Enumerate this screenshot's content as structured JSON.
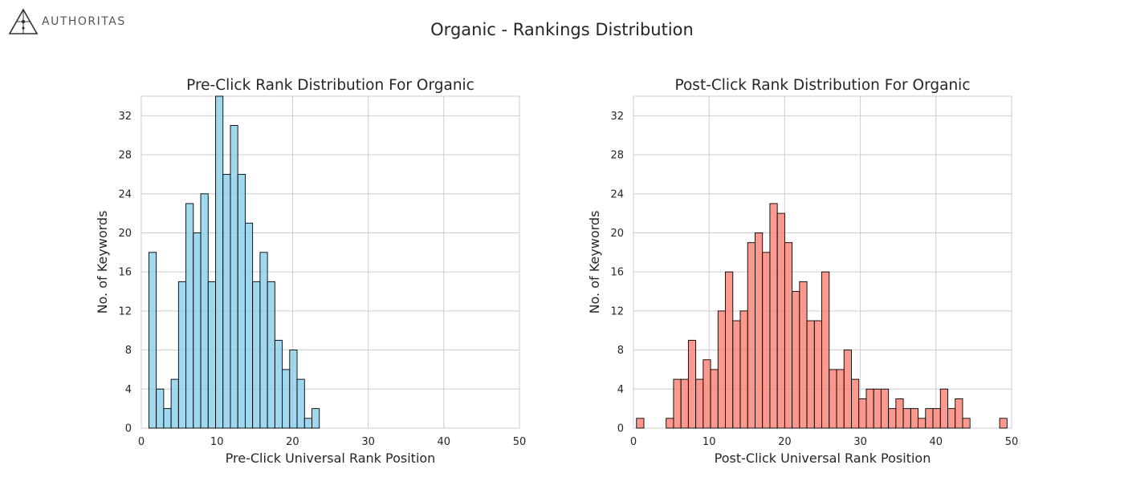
{
  "logo": {
    "text": "AUTHORITAS"
  },
  "title": "Organic - Rankings Distribution",
  "chart_data": [
    {
      "type": "bar",
      "title": "Pre-Click Rank Distribution For Organic",
      "xlabel": "Pre-Click Universal Rank Position",
      "ylabel": "No. of Keywords",
      "xlim": [
        0,
        50
      ],
      "ylim": [
        0,
        34
      ],
      "xticks": [
        0,
        10,
        20,
        30,
        40,
        50
      ],
      "yticks": [
        0,
        4,
        8,
        12,
        16,
        20,
        24,
        28,
        32
      ],
      "grid": true,
      "color": "#87ceeb",
      "bins": [
        {
          "x0": 1.0,
          "x1": 1.98,
          "value": 18
        },
        {
          "x0": 1.98,
          "x1": 2.96,
          "value": 4
        },
        {
          "x0": 2.96,
          "x1": 3.94,
          "value": 2
        },
        {
          "x0": 3.94,
          "x1": 4.92,
          "value": 5
        },
        {
          "x0": 4.92,
          "x1": 5.9,
          "value": 15
        },
        {
          "x0": 5.9,
          "x1": 6.88,
          "value": 23
        },
        {
          "x0": 6.88,
          "x1": 7.86,
          "value": 20
        },
        {
          "x0": 7.86,
          "x1": 8.84,
          "value": 24
        },
        {
          "x0": 8.84,
          "x1": 9.82,
          "value": 15
        },
        {
          "x0": 9.82,
          "x1": 10.8,
          "value": 34
        },
        {
          "x0": 10.8,
          "x1": 11.78,
          "value": 26
        },
        {
          "x0": 11.78,
          "x1": 12.76,
          "value": 31
        },
        {
          "x0": 12.76,
          "x1": 13.74,
          "value": 26
        },
        {
          "x0": 13.74,
          "x1": 14.72,
          "value": 21
        },
        {
          "x0": 14.72,
          "x1": 15.7,
          "value": 15
        },
        {
          "x0": 15.7,
          "x1": 16.68,
          "value": 18
        },
        {
          "x0": 16.68,
          "x1": 17.66,
          "value": 15
        },
        {
          "x0": 17.66,
          "x1": 18.64,
          "value": 9
        },
        {
          "x0": 18.64,
          "x1": 19.62,
          "value": 6
        },
        {
          "x0": 19.62,
          "x1": 20.6,
          "value": 8
        },
        {
          "x0": 20.6,
          "x1": 21.58,
          "value": 5
        },
        {
          "x0": 21.58,
          "x1": 22.56,
          "value": 1
        },
        {
          "x0": 22.56,
          "x1": 23.54,
          "value": 2
        }
      ]
    },
    {
      "type": "bar",
      "title": "Post-Click Rank Distribution For Organic",
      "xlabel": "Post-Click Universal Rank Position",
      "ylabel": "No. of Keywords",
      "xlim": [
        0,
        50
      ],
      "ylim": [
        0,
        34
      ],
      "xticks": [
        0,
        10,
        20,
        30,
        40,
        50
      ],
      "yticks": [
        0,
        4,
        8,
        12,
        16,
        20,
        24,
        28,
        32
      ],
      "grid": true,
      "color": "#fa8072",
      "bins": [
        {
          "x0": 0.4,
          "x1": 1.38,
          "value": 1
        },
        {
          "x0": 4.32,
          "x1": 5.3,
          "value": 1
        },
        {
          "x0": 5.3,
          "x1": 6.28,
          "value": 5
        },
        {
          "x0": 6.28,
          "x1": 7.26,
          "value": 5
        },
        {
          "x0": 7.26,
          "x1": 8.24,
          "value": 9
        },
        {
          "x0": 8.24,
          "x1": 9.22,
          "value": 5
        },
        {
          "x0": 9.22,
          "x1": 10.2,
          "value": 7
        },
        {
          "x0": 10.2,
          "x1": 11.18,
          "value": 6
        },
        {
          "x0": 11.18,
          "x1": 12.16,
          "value": 12
        },
        {
          "x0": 12.16,
          "x1": 13.14,
          "value": 16
        },
        {
          "x0": 13.14,
          "x1": 14.12,
          "value": 11
        },
        {
          "x0": 14.12,
          "x1": 15.1,
          "value": 12
        },
        {
          "x0": 15.1,
          "x1": 16.08,
          "value": 19
        },
        {
          "x0": 16.08,
          "x1": 17.06,
          "value": 20
        },
        {
          "x0": 17.06,
          "x1": 18.04,
          "value": 18
        },
        {
          "x0": 18.04,
          "x1": 19.02,
          "value": 23
        },
        {
          "x0": 19.02,
          "x1": 20.0,
          "value": 22
        },
        {
          "x0": 20.0,
          "x1": 20.98,
          "value": 19
        },
        {
          "x0": 20.98,
          "x1": 21.96,
          "value": 14
        },
        {
          "x0": 21.96,
          "x1": 22.94,
          "value": 15
        },
        {
          "x0": 22.94,
          "x1": 23.92,
          "value": 11
        },
        {
          "x0": 23.92,
          "x1": 24.9,
          "value": 11
        },
        {
          "x0": 24.9,
          "x1": 25.88,
          "value": 16
        },
        {
          "x0": 25.88,
          "x1": 26.86,
          "value": 6
        },
        {
          "x0": 26.86,
          "x1": 27.84,
          "value": 6
        },
        {
          "x0": 27.84,
          "x1": 28.82,
          "value": 8
        },
        {
          "x0": 28.82,
          "x1": 29.8,
          "value": 5
        },
        {
          "x0": 29.8,
          "x1": 30.78,
          "value": 3
        },
        {
          "x0": 30.78,
          "x1": 31.76,
          "value": 4
        },
        {
          "x0": 31.76,
          "x1": 32.74,
          "value": 4
        },
        {
          "x0": 32.74,
          "x1": 33.72,
          "value": 4
        },
        {
          "x0": 33.72,
          "x1": 34.7,
          "value": 2
        },
        {
          "x0": 34.7,
          "x1": 35.68,
          "value": 3
        },
        {
          "x0": 35.68,
          "x1": 36.66,
          "value": 2
        },
        {
          "x0": 36.66,
          "x1": 37.64,
          "value": 2
        },
        {
          "x0": 37.64,
          "x1": 38.62,
          "value": 1
        },
        {
          "x0": 38.62,
          "x1": 39.6,
          "value": 2
        },
        {
          "x0": 39.6,
          "x1": 40.58,
          "value": 2
        },
        {
          "x0": 40.58,
          "x1": 41.56,
          "value": 4
        },
        {
          "x0": 41.56,
          "x1": 42.54,
          "value": 2
        },
        {
          "x0": 42.54,
          "x1": 43.52,
          "value": 3
        },
        {
          "x0": 43.52,
          "x1": 44.5,
          "value": 1
        },
        {
          "x0": 48.42,
          "x1": 49.4,
          "value": 1
        }
      ]
    }
  ]
}
